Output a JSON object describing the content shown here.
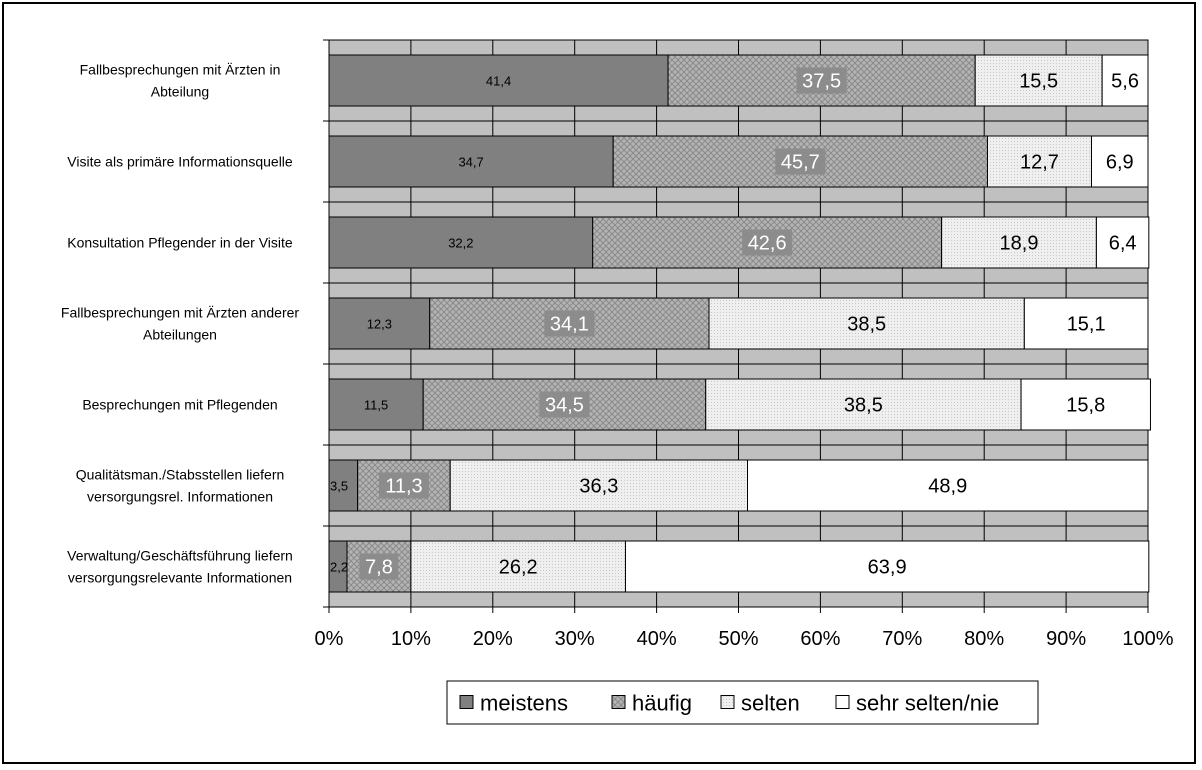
{
  "chart_data": {
    "type": "bar",
    "orientation": "horizontal",
    "stacked": true,
    "percent": true,
    "categories": [
      [
        "Fallbesprechungen mit Ärzten in",
        "Abteilung"
      ],
      [
        "Visite als primäre Informationsquelle"
      ],
      [
        "Konsultation Pflegender in der Visite"
      ],
      [
        "Fallbesprechungen mit Ärzten anderer",
        "Abteilungen"
      ],
      [
        "Besprechungen mit Pflegenden"
      ],
      [
        "Qualitätsman./Stabsstellen liefern",
        "versorgungsrel. Informationen"
      ],
      [
        "Verwaltung/Geschäftsführung liefern",
        "versorgungsrelevante Informationen"
      ]
    ],
    "series": [
      {
        "name": "meistens",
        "values": [
          41.4,
          34.7,
          32.2,
          12.3,
          11.5,
          3.5,
          2.2
        ],
        "labels": [
          "41,4",
          "34,7",
          "32,2",
          "12,3",
          "11,5",
          "3,5",
          "2,2"
        ],
        "color": "#808080"
      },
      {
        "name": "häufig",
        "values": [
          37.5,
          45.7,
          42.6,
          34.1,
          34.5,
          11.3,
          7.8
        ],
        "labels": [
          "37,5",
          "45,7",
          "42,6",
          "34,1",
          "34,5",
          "11,3",
          "7,8"
        ],
        "color": "#a6a6a6"
      },
      {
        "name": "selten",
        "values": [
          15.5,
          12.7,
          18.9,
          38.5,
          38.5,
          36.3,
          26.2
        ],
        "labels": [
          "15,5",
          "12,7",
          "18,9",
          "38,5",
          "38,5",
          "36,3",
          "26,2"
        ],
        "color": "#e6e6e6"
      },
      {
        "name": "sehr selten/nie",
        "values": [
          5.6,
          6.9,
          6.4,
          15.1,
          15.8,
          48.9,
          63.9
        ],
        "labels": [
          "5,6",
          "6,9",
          "6,4",
          "15,1",
          "15,8",
          "48,9",
          "63,9"
        ],
        "color": "#ffffff"
      }
    ],
    "xticks": [
      "0%",
      "10%",
      "20%",
      "30%",
      "40%",
      "50%",
      "60%",
      "70%",
      "80%",
      "90%",
      "100%"
    ],
    "xlim": [
      0,
      100
    ],
    "grid": true,
    "plot_background": "#c0c0c0",
    "legend_position": "bottom",
    "title": "",
    "xlabel": "",
    "ylabel": ""
  }
}
